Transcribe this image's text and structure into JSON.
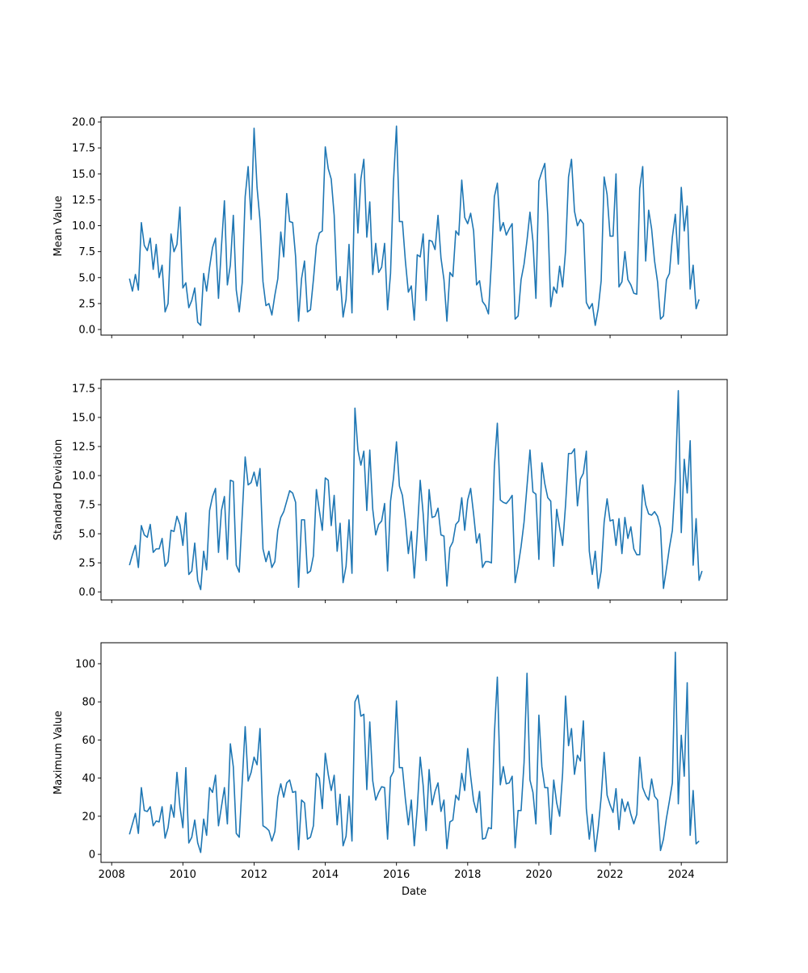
{
  "chart_data": [
    {
      "type": "line",
      "ylabel": "Mean Value",
      "xlabel": "",
      "x_start": "2008-07",
      "x_step": "1 month",
      "xlim": [
        2007.7,
        2025.29
      ],
      "ylim": [
        -0.54,
        20.47
      ],
      "xticks": [
        2008,
        2010,
        2012,
        2014,
        2016,
        2018,
        2020,
        2022,
        2024
      ],
      "xtick_labels_shown": false,
      "yticks": [
        0,
        2.5,
        5,
        7.5,
        10,
        12.5,
        15,
        17.5,
        20
      ],
      "ytick_labels": [
        "0.0",
        "2.5",
        "5.0",
        "7.5",
        "10.0",
        "12.5",
        "15.0",
        "17.5",
        "20.0"
      ],
      "color": "#1f77b4",
      "values": [
        4.9,
        3.7,
        5.3,
        3.8,
        10.3,
        8.1,
        7.6,
        8.8,
        5.8,
        8.2,
        5.0,
        6.2,
        1.7,
        2.5,
        9.2,
        7.5,
        8.2,
        11.8,
        4.0,
        4.5,
        2.1,
        2.8,
        4.0,
        0.7,
        0.4,
        5.4,
        3.7,
        6.0,
        7.9,
        8.8,
        3.0,
        8.0,
        12.4,
        4.3,
        6.2,
        11.0,
        3.8,
        1.7,
        4.5,
        12.8,
        15.7,
        10.6,
        19.4,
        13.7,
        10.5,
        4.6,
        2.3,
        2.5,
        1.4,
        3.3,
        4.9,
        9.4,
        7.0,
        13.1,
        10.4,
        10.3,
        7.0,
        0.8,
        4.9,
        6.6,
        1.7,
        1.9,
        4.8,
        8.1,
        9.3,
        9.5,
        17.6,
        15.5,
        14.5,
        11.0,
        3.8,
        5.1,
        1.2,
        2.9,
        8.2,
        1.6,
        15.0,
        9.3,
        14.5,
        16.4,
        8.9,
        12.3,
        5.3,
        8.3,
        5.5,
        6.0,
        8.3,
        1.9,
        5.4,
        14.3,
        19.6,
        10.4,
        10.4,
        6.6,
        3.6,
        4.2,
        0.9,
        7.2,
        7.0,
        9.2,
        2.8,
        8.6,
        8.5,
        7.7,
        11.0,
        6.9,
        4.8,
        0.8,
        5.5,
        5.1,
        9.5,
        9.1,
        14.4,
        10.8,
        10.2,
        11.2,
        9.5,
        4.3,
        4.7,
        2.7,
        2.3,
        1.5,
        6.5,
        12.8,
        14.1,
        9.5,
        10.3,
        9.1,
        9.7,
        10.2,
        1.0,
        1.3,
        4.8,
        6.3,
        8.6,
        11.3,
        8.5,
        3.0,
        14.3,
        15.2,
        16.0,
        11.0,
        2.2,
        4.1,
        3.5,
        6.1,
        4.1,
        7.6,
        14.7,
        16.4,
        11.4,
        10.0,
        10.6,
        10.2,
        2.6,
        2.0,
        2.5,
        0.4,
        2.0,
        4.7,
        14.7,
        13.0,
        9.0,
        9.0,
        15.0,
        4.1,
        4.6,
        7.5,
        4.8,
        4.3,
        3.5,
        3.4,
        13.6,
        15.7,
        6.6,
        11.5,
        9.7,
        6.6,
        4.6,
        1.0,
        1.3,
        4.8,
        5.4,
        8.9,
        11.1,
        6.3,
        13.7,
        9.5,
        11.9,
        3.9,
        6.2,
        2.0,
        2.9
      ]
    },
    {
      "type": "line",
      "ylabel": "Standard Deviation",
      "xlabel": "",
      "x_start": "2008-07",
      "x_step": "1 month",
      "xlim": [
        2007.7,
        2025.29
      ],
      "ylim": [
        -0.69,
        18.26
      ],
      "xticks": [
        2008,
        2010,
        2012,
        2014,
        2016,
        2018,
        2020,
        2022,
        2024
      ],
      "xtick_labels_shown": false,
      "yticks": [
        0,
        2.5,
        5,
        7.5,
        10,
        12.5,
        15,
        17.5
      ],
      "ytick_labels": [
        "0.0",
        "2.5",
        "5.0",
        "7.5",
        "10.0",
        "12.5",
        "15.0",
        "17.5"
      ],
      "color": "#1f77b4",
      "values": [
        2.3,
        3.2,
        4.0,
        2.1,
        5.7,
        4.9,
        4.7,
        5.8,
        3.4,
        3.7,
        3.7,
        4.6,
        2.2,
        2.6,
        5.3,
        5.2,
        6.5,
        5.8,
        4.0,
        6.8,
        1.5,
        1.8,
        4.2,
        1.0,
        0.2,
        3.5,
        1.9,
        7.0,
        8.2,
        8.9,
        3.4,
        7.0,
        8.2,
        2.8,
        9.6,
        9.5,
        2.3,
        1.7,
        6.6,
        11.6,
        9.2,
        9.4,
        10.3,
        9.1,
        10.6,
        3.7,
        2.6,
        3.5,
        2.1,
        2.6,
        5.3,
        6.4,
        6.9,
        7.8,
        8.7,
        8.5,
        7.7,
        0.4,
        6.2,
        6.2,
        1.6,
        1.8,
        3.1,
        8.8,
        7.0,
        5.3,
        9.8,
        9.6,
        5.7,
        8.3,
        3.5,
        5.9,
        0.8,
        2.2,
        6.2,
        1.6,
        15.8,
        12.2,
        10.9,
        12.1,
        7.0,
        12.2,
        7.1,
        4.9,
        5.8,
        6.1,
        7.6,
        1.8,
        7.8,
        9.8,
        12.9,
        9.1,
        8.3,
        6.2,
        3.3,
        5.2,
        1.2,
        5.0,
        9.6,
        6.7,
        2.7,
        8.8,
        6.4,
        6.5,
        7.2,
        4.9,
        4.8,
        0.5,
        3.8,
        4.3,
        5.8,
        6.1,
        8.1,
        5.3,
        7.9,
        8.9,
        6.7,
        4.2,
        5.0,
        2.1,
        2.6,
        2.6,
        2.5,
        10.8,
        14.5,
        7.9,
        7.7,
        7.6,
        7.9,
        8.3,
        0.8,
        2.2,
        3.9,
        6.0,
        9.1,
        12.2,
        8.6,
        8.4,
        2.8,
        11.1,
        9.3,
        8.1,
        7.8,
        2.2,
        7.1,
        5.5,
        4.0,
        7.5,
        11.9,
        11.9,
        12.3,
        7.4,
        9.7,
        10.2,
        12.1,
        3.5,
        1.5,
        3.5,
        0.3,
        1.8,
        6.0,
        8.0,
        6.1,
        6.2,
        4.0,
        6.3,
        3.3,
        6.4,
        4.6,
        5.6,
        3.7,
        3.2,
        3.2,
        9.2,
        7.5,
        6.7,
        6.6,
        6.9,
        6.5,
        5.5,
        0.3,
        2.0,
        3.8,
        5.3,
        9.6,
        17.3,
        5.1,
        11.4,
        8.5,
        13.0,
        2.3,
        6.3,
        1.0,
        1.8
      ]
    },
    {
      "type": "line",
      "ylabel": "Maximum Value",
      "xlabel": "Date",
      "x_start": "2008-07",
      "x_step": "1 month",
      "xlim": [
        2007.7,
        2025.29
      ],
      "ylim": [
        -4.2,
        111
      ],
      "xticks": [
        2008,
        2010,
        2012,
        2014,
        2016,
        2018,
        2020,
        2022,
        2024
      ],
      "xtick_labels": [
        "2008",
        "2010",
        "2012",
        "2014",
        "2016",
        "2018",
        "2020",
        "2022",
        "2024"
      ],
      "xtick_labels_shown": true,
      "yticks": [
        0,
        20,
        40,
        60,
        80,
        100
      ],
      "ytick_labels": [
        "0",
        "20",
        "40",
        "60",
        "80",
        "100"
      ],
      "color": "#1f77b4",
      "values": [
        10.5,
        16,
        21.5,
        11,
        35,
        23,
        22.5,
        25,
        15,
        17.5,
        17,
        25,
        8.5,
        14,
        26,
        19.5,
        43,
        25,
        14,
        45.5,
        6,
        9,
        18,
        6,
        1,
        18.5,
        10,
        35,
        32.5,
        41.5,
        15,
        25,
        35,
        16,
        58,
        46,
        11,
        9,
        38,
        67,
        38.5,
        43,
        51,
        47,
        66,
        15,
        14,
        12.5,
        7,
        12,
        30,
        37,
        30,
        37.5,
        39,
        32.5,
        33,
        2.5,
        28.5,
        27,
        8,
        9,
        15,
        42.5,
        40,
        24,
        53,
        42,
        33.5,
        41.5,
        15.5,
        31.5,
        4.5,
        9.5,
        30.5,
        7,
        80,
        83.5,
        72.5,
        73.5,
        34,
        69.5,
        38.5,
        28.5,
        32.5,
        35.5,
        35,
        8,
        40.5,
        43.5,
        80.5,
        45.5,
        45.5,
        29,
        15.5,
        28.5,
        4.5,
        24,
        51,
        36,
        12.5,
        44.5,
        26,
        33,
        37.5,
        22.5,
        28.5,
        3,
        17,
        18,
        31,
        28.5,
        42.5,
        33.5,
        55.5,
        41,
        28,
        22,
        33,
        8,
        8.5,
        14,
        13.5,
        63,
        93,
        36.5,
        46,
        37,
        37.5,
        41,
        3.5,
        23,
        23,
        48,
        95,
        39,
        32.5,
        16,
        73,
        46,
        35,
        35,
        10.5,
        39,
        27,
        20,
        42.5,
        83,
        57,
        66,
        42,
        52,
        49,
        70,
        24,
        8,
        21,
        1.5,
        14,
        30,
        53.5,
        31,
        26,
        22,
        34.5,
        13,
        29,
        22.5,
        27.5,
        21,
        16,
        21,
        51,
        35,
        31,
        28.5,
        39.5,
        30.5,
        28.5,
        2,
        8,
        19,
        28,
        37.5,
        106,
        26.5,
        62.5,
        41,
        90,
        10,
        33.5,
        5.5,
        7
      ]
    }
  ]
}
